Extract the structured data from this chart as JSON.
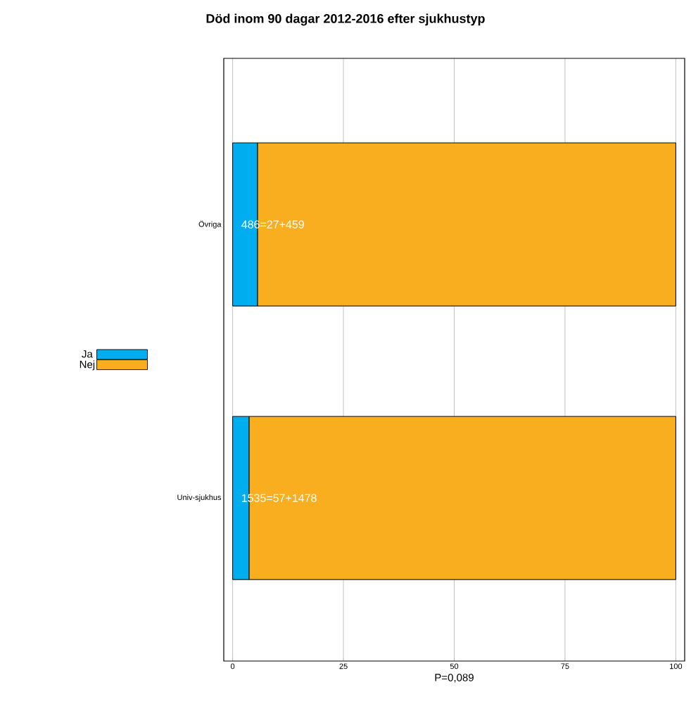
{
  "chart_data": {
    "type": "bar",
    "orientation": "horizontal",
    "stacked": true,
    "title": "Död inom 90 dagar 2012-2016 efter sjukhustyp",
    "xlabel": "P=0,089",
    "categories": [
      "Övriga",
      "Univ-sjukhus"
    ],
    "series": [
      {
        "name": "Ja",
        "color": "#00aeef",
        "values": [
          5.6,
          3.7
        ]
      },
      {
        "name": "Nej",
        "color": "#f8ae1e",
        "values": [
          94.4,
          96.3
        ]
      }
    ],
    "xlim": [
      -2,
      102
    ],
    "xticks": [
      0,
      25,
      50,
      75,
      100
    ],
    "grid": "x",
    "legend": "left",
    "annotations": [
      "486=27+459",
      "1535=57+1478"
    ]
  }
}
